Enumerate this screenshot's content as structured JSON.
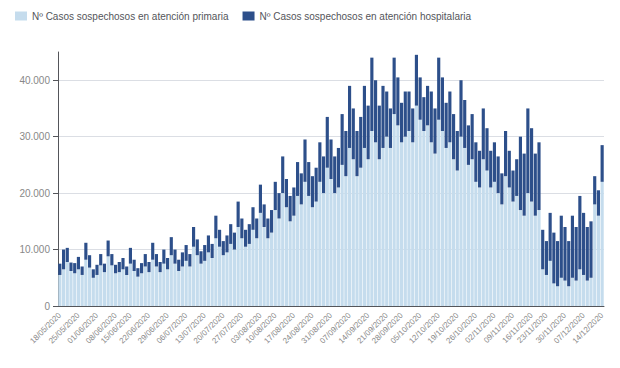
{
  "chart_data": {
    "type": "bar",
    "stacked": true,
    "categories": [
      "18/05/2020",
      null,
      null,
      null,
      null,
      "25/05/2020",
      null,
      null,
      null,
      null,
      "01/06/2020",
      null,
      null,
      null,
      null,
      "08/06/2020",
      null,
      null,
      null,
      "15/06/2020",
      null,
      null,
      null,
      null,
      "22/06/2020",
      null,
      null,
      null,
      null,
      "29/06/2020",
      null,
      null,
      null,
      null,
      "06/07/2020",
      null,
      null,
      null,
      null,
      "13/07/2020",
      null,
      null,
      null,
      null,
      "20/07/2020",
      null,
      null,
      null,
      null,
      "27/07/2020",
      null,
      null,
      null,
      null,
      "03/08/2020",
      null,
      null,
      null,
      "10/08/2020",
      null,
      null,
      null,
      null,
      "17/08/2020",
      null,
      null,
      null,
      null,
      "24/08/2020",
      null,
      null,
      null,
      null,
      "31/08/2020",
      null,
      null,
      null,
      null,
      "07/09/2020",
      null,
      null,
      null,
      null,
      "14/09/2020",
      null,
      null,
      null,
      null,
      "21/09/2020",
      null,
      null,
      null,
      "28/09/2020",
      null,
      null,
      null,
      null,
      "05/10/2020",
      null,
      null,
      null,
      null,
      "12/10/2020",
      null,
      null,
      null,
      null,
      "19/10/2020",
      null,
      null,
      null,
      null,
      "26/10/2020",
      null,
      null,
      null,
      null,
      "02/11/2020",
      null,
      null,
      null,
      null,
      "09/11/2020",
      null,
      null,
      null,
      null,
      "16/11/2020",
      null,
      null,
      null,
      "23/11/2020",
      null,
      null,
      null,
      null,
      "30/11/2020",
      null,
      null,
      null,
      null,
      "07/12/2020",
      null,
      null,
      null,
      null,
      "14/12/2020"
    ],
    "series": [
      {
        "name": "Nº Casos sospechosos en atención primaria",
        "color": "#c5dced",
        "values": [
          5500,
          6500,
          7800,
          6200,
          5800,
          6500,
          5500,
          8200,
          6800,
          5000,
          5500,
          7200,
          6000,
          8800,
          7200,
          5800,
          6000,
          6500,
          5500,
          7500,
          6200,
          5200,
          5800,
          7000,
          6000,
          8200,
          7000,
          6000,
          7500,
          6500,
          9000,
          7500,
          6200,
          7000,
          8000,
          7000,
          10500,
          9000,
          7500,
          8000,
          9500,
          8500,
          12000,
          10500,
          9000,
          9500,
          11000,
          10000,
          14000,
          12000,
          10500,
          11000,
          13500,
          12000,
          16500,
          14000,
          12000,
          13000,
          17000,
          15500,
          20000,
          17500,
          15000,
          16000,
          19500,
          18000,
          22000,
          19500,
          17500,
          18500,
          22000,
          20000,
          24500,
          22500,
          20000,
          21000,
          25000,
          23000,
          28000,
          26000,
          23000,
          24500,
          28000,
          26000,
          31000,
          29000,
          26000,
          28000,
          30000,
          28000,
          34000,
          32000,
          29000,
          30000,
          31000,
          29000,
          35500,
          33000,
          31000,
          32000,
          29000,
          27000,
          33000,
          31000,
          28000,
          29000,
          26000,
          24000,
          30000,
          28000,
          25000,
          26000,
          22000,
          21000,
          26000,
          24000,
          21000,
          22000,
          20000,
          18000,
          23000,
          21000,
          18500,
          19500,
          17000,
          16000,
          20000,
          18500,
          16000,
          17000,
          6500,
          5500,
          8000,
          4000,
          3500,
          5000,
          4500,
          3500,
          5000,
          4500,
          6500,
          5500,
          4500,
          5000,
          18000,
          16000,
          22000
        ]
      },
      {
        "name": "Nº Casos sospechosos en atención hospitalaria",
        "color": "#2d4f8a",
        "values": [
          2000,
          3500,
          2500,
          1500,
          1800,
          2200,
          1500,
          3000,
          2200,
          1500,
          1800,
          2000,
          1500,
          2800,
          2000,
          1500,
          1800,
          2000,
          1500,
          2800,
          2000,
          1500,
          1800,
          2200,
          1800,
          3000,
          2200,
          1800,
          2500,
          2000,
          3200,
          2500,
          2000,
          2500,
          2800,
          2200,
          3500,
          2800,
          2200,
          2800,
          3000,
          2500,
          4000,
          3000,
          2500,
          3000,
          3500,
          3000,
          4500,
          3500,
          3000,
          3500,
          4000,
          3500,
          5000,
          4000,
          3500,
          4000,
          5000,
          4500,
          6500,
          5000,
          4500,
          5000,
          6000,
          5500,
          7500,
          6000,
          5500,
          6000,
          7000,
          6500,
          9000,
          7000,
          6500,
          7000,
          9000,
          8000,
          11000,
          9000,
          8000,
          9000,
          11000,
          9500,
          13000,
          11000,
          9500,
          11000,
          8000,
          7000,
          10000,
          8500,
          7000,
          8000,
          7000,
          6000,
          9000,
          7500,
          6000,
          7000,
          9000,
          8000,
          11000,
          9500,
          8000,
          9000,
          8000,
          7000,
          10000,
          8500,
          7000,
          8000,
          7000,
          6500,
          9000,
          7500,
          6500,
          7000,
          6500,
          5500,
          8000,
          6500,
          5500,
          6500,
          13000,
          11000,
          15000,
          13000,
          11000,
          12000,
          7000,
          6000,
          8500,
          9000,
          8000,
          11000,
          9500,
          8000,
          11000,
          9500,
          13000,
          11000,
          9500,
          10000,
          5000,
          4500,
          6500
        ]
      }
    ],
    "ylim": [
      0,
      45000
    ],
    "yticks": [
      0,
      {
        "value": 10000,
        "label": "10.000"
      },
      {
        "value": 20000,
        "label": "20.000"
      },
      {
        "value": 30000,
        "label": "30.000"
      },
      {
        "value": 40000,
        "label": "40.000"
      }
    ],
    "grid": true,
    "legend": "upper left"
  }
}
